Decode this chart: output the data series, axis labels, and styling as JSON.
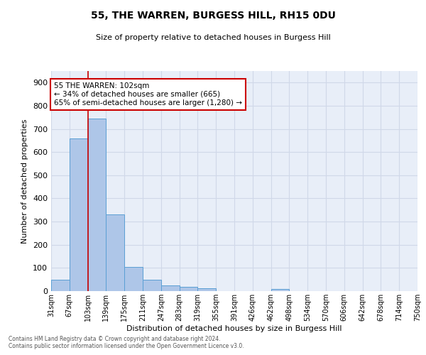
{
  "title1": "55, THE WARREN, BURGESS HILL, RH15 0DU",
  "title2": "Size of property relative to detached houses in Burgess Hill",
  "xlabel": "Distribution of detached houses by size in Burgess Hill",
  "ylabel": "Number of detached properties",
  "bin_labels": [
    "31sqm",
    "67sqm",
    "103sqm",
    "139sqm",
    "175sqm",
    "211sqm",
    "247sqm",
    "283sqm",
    "319sqm",
    "355sqm",
    "391sqm",
    "426sqm",
    "462sqm",
    "498sqm",
    "534sqm",
    "570sqm",
    "606sqm",
    "642sqm",
    "678sqm",
    "714sqm",
    "750sqm"
  ],
  "bar_values": [
    50,
    660,
    745,
    330,
    105,
    50,
    25,
    17,
    13,
    0,
    0,
    0,
    10,
    0,
    0,
    0,
    0,
    0,
    0,
    0
  ],
  "bar_color": "#aec6e8",
  "bar_edge_color": "#5a9fd4",
  "grid_color": "#d0d8e8",
  "background_color": "#e8eef8",
  "annotation_box_text": "55 THE WARREN: 102sqm\n← 34% of detached houses are smaller (665)\n65% of semi-detached houses are larger (1,280) →",
  "annotation_box_color": "#cc0000",
  "vline_x": 2,
  "ylim": [
    0,
    950
  ],
  "yticks": [
    0,
    100,
    200,
    300,
    400,
    500,
    600,
    700,
    800,
    900
  ],
  "footer1": "Contains HM Land Registry data © Crown copyright and database right 2024.",
  "footer2": "Contains public sector information licensed under the Open Government Licence v3.0."
}
